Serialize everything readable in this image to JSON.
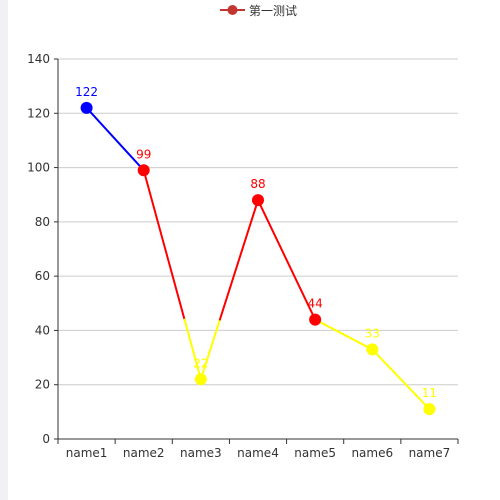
{
  "legend": {
    "label": "第一测试",
    "color": "#c23531"
  },
  "chart_data": {
    "type": "line",
    "categories": [
      "name1",
      "name2",
      "name3",
      "name4",
      "name5",
      "name6",
      "name7"
    ],
    "series": [
      {
        "name": "第一测试",
        "values": [
          122,
          99,
          22,
          88,
          44,
          33,
          11
        ]
      }
    ],
    "ylim": [
      0,
      140
    ],
    "yticks": [
      0,
      20,
      40,
      60,
      80,
      100,
      120,
      140
    ],
    "xlabel": "",
    "ylabel": "",
    "grid": true,
    "legend_position": "top-center",
    "visual_map": [
      {
        "min": 100,
        "max": 140,
        "color": "#0000ff"
      },
      {
        "min": 44,
        "max": 100,
        "color": "#ff0000"
      },
      {
        "min": 0,
        "max": 44,
        "color": "#ffff00"
      }
    ],
    "data_labels": true
  }
}
